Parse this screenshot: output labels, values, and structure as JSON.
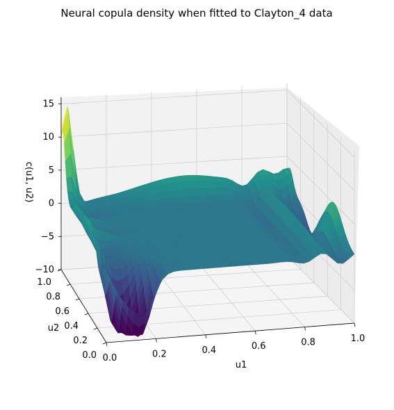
{
  "chart_data": {
    "type": "surface3d",
    "title": "Neural copula density when fitted to Clayton_4 data",
    "xlabel": "u1",
    "ylabel": "u2",
    "zlabel": "c(u1, u2)",
    "xlim": [
      0,
      1
    ],
    "ylim": [
      0,
      1
    ],
    "zlim": [
      -10,
      16
    ],
    "x_ticks": [
      "0.0",
      "0.2",
      "0.4",
      "0.6",
      "0.8",
      "1.0"
    ],
    "y_ticks": [
      "0.0",
      "0.2",
      "0.4",
      "0.6",
      "0.8",
      "1.0"
    ],
    "z_ticks": [
      "−10",
      "−5",
      "0",
      "5",
      "10",
      "15"
    ],
    "colormap": "viridis",
    "colormap_stops": [
      "#440154",
      "#3b528b",
      "#21918c",
      "#5ec962",
      "#fde725"
    ],
    "grid": true,
    "surface_features": [
      {
        "u1": 0.02,
        "u2": 0.98,
        "c": 14.5
      },
      {
        "u1": 0.1,
        "u2": 0.1,
        "c": -9.5
      },
      {
        "u1": 0.55,
        "u2": 0.95,
        "c": 3.5
      },
      {
        "u1": 0.95,
        "u2": 0.95,
        "c": 4.0
      },
      {
        "u1": 1.0,
        "u2": 0.3,
        "c": 5.0
      }
    ]
  }
}
